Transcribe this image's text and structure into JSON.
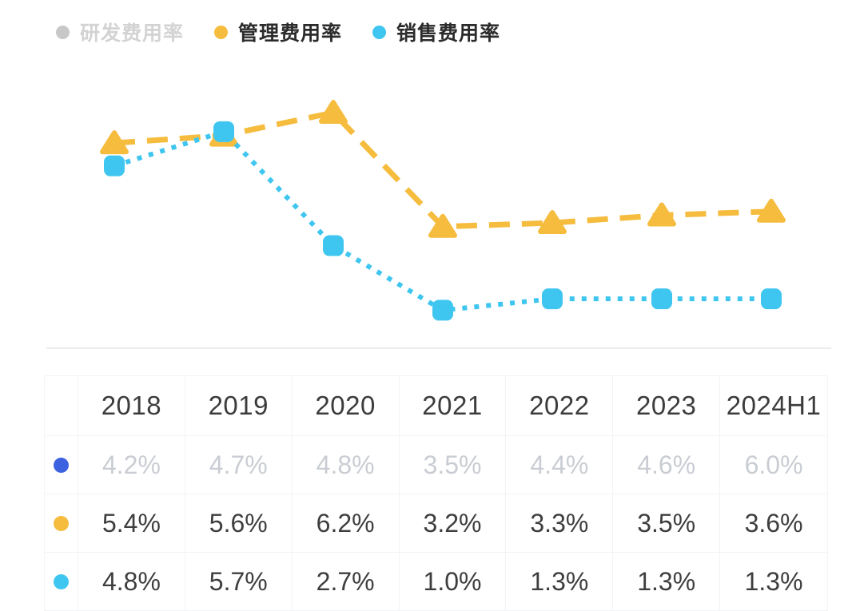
{
  "colors": {
    "rd_blue": "#3D62E0",
    "mgmt_yellow": "#F5BC3E",
    "sales_cyan": "#3FC6F0",
    "disabled_gray_dot": "#C8C8C8",
    "disabled_gray_text": "#D3D3D3",
    "muted_value_text": "#C9CDD3",
    "axis_line": "#ECECEC"
  },
  "legend": {
    "items": [
      {
        "label": "研发费用率",
        "dot_color": "#C8C8C8",
        "label_color": "#D3D3D3",
        "enabled": false
      },
      {
        "label": "管理费用率",
        "dot_color": "#F5BC3E",
        "label_color": "#2B2B2B",
        "enabled": true
      },
      {
        "label": "销售费用率",
        "dot_color": "#3FC6F0",
        "label_color": "#2B2B2B",
        "enabled": true
      }
    ]
  },
  "chart_data": {
    "type": "line",
    "categories": [
      "2018",
      "2019",
      "2020",
      "2021",
      "2022",
      "2023",
      "2024H1"
    ],
    "series": [
      {
        "name": "研发费用率",
        "values": [
          4.2,
          4.7,
          4.8,
          3.5,
          4.4,
          4.6,
          6.0
        ],
        "color": "#3D62E0",
        "visible": false,
        "marker": "circle",
        "line_style": "solid"
      },
      {
        "name": "管理费用率",
        "values": [
          5.4,
          5.6,
          6.2,
          3.2,
          3.3,
          3.5,
          3.6
        ],
        "color": "#F5BC3E",
        "visible": true,
        "marker": "triangle",
        "line_style": "dashed",
        "line_width": 7,
        "dash": "26 15"
      },
      {
        "name": "销售费用率",
        "values": [
          4.8,
          5.7,
          2.7,
          1.0,
          1.3,
          1.3,
          1.3
        ],
        "color": "#3FC6F0",
        "visible": true,
        "marker": "square",
        "line_style": "dotted",
        "line_width": 6,
        "dash": "6 9"
      }
    ],
    "unit": "%",
    "ylim": [
      0,
      7
    ],
    "xlabel": "",
    "ylabel": "",
    "grid": false,
    "axes_hidden": true,
    "legend_position": "top"
  },
  "table": {
    "columns": [
      "2018",
      "2019",
      "2020",
      "2021",
      "2022",
      "2023",
      "2024H1"
    ],
    "rows": [
      {
        "series": "研发费用率",
        "dot_color": "#3D62E0",
        "muted": true,
        "cells": [
          "4.2%",
          "4.7%",
          "4.8%",
          "3.5%",
          "4.4%",
          "4.6%",
          "6.0%"
        ]
      },
      {
        "series": "管理费用率",
        "dot_color": "#F5BC3E",
        "muted": false,
        "cells": [
          "5.4%",
          "5.6%",
          "6.2%",
          "3.2%",
          "3.3%",
          "3.5%",
          "3.6%"
        ]
      },
      {
        "series": "销售费用率",
        "dot_color": "#3FC6F0",
        "muted": false,
        "cells": [
          "4.8%",
          "5.7%",
          "2.7%",
          "1.0%",
          "1.3%",
          "1.3%",
          "1.3%"
        ]
      }
    ]
  }
}
